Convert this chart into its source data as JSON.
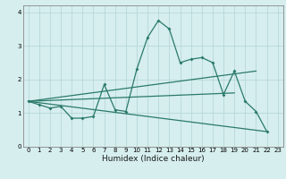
{
  "xlabel": "Humidex (Indice chaleur)",
  "ylabel": "",
  "bg_color": "#d6eeee",
  "grid_color": "#b8d8d8",
  "line_color": "#2a7a6a",
  "xlim": [
    -0.5,
    23.5
  ],
  "ylim": [
    0,
    4.2
  ],
  "yticks": [
    0,
    1,
    2,
    3,
    4
  ],
  "xticks": [
    0,
    1,
    2,
    3,
    4,
    5,
    6,
    7,
    8,
    9,
    10,
    11,
    12,
    13,
    14,
    15,
    16,
    17,
    18,
    19,
    20,
    21,
    22,
    23
  ],
  "main_x": [
    0,
    1,
    2,
    3,
    4,
    5,
    6,
    7,
    8,
    9,
    10,
    11,
    12,
    13,
    14,
    15,
    16,
    17,
    18,
    19,
    20,
    21,
    22
  ],
  "main_y": [
    1.35,
    1.25,
    1.15,
    1.2,
    0.85,
    0.85,
    0.9,
    1.85,
    1.1,
    1.05,
    2.3,
    3.25,
    3.75,
    3.5,
    2.5,
    2.6,
    2.65,
    2.5,
    1.55,
    2.25,
    1.35,
    1.05,
    0.45
  ],
  "trend1_x": [
    0,
    22
  ],
  "trend1_y": [
    1.35,
    0.45
  ],
  "trend2_x": [
    0,
    19
  ],
  "trend2_y": [
    1.35,
    1.6
  ],
  "trend3_x": [
    0,
    21
  ],
  "trend3_y": [
    1.35,
    2.25
  ]
}
